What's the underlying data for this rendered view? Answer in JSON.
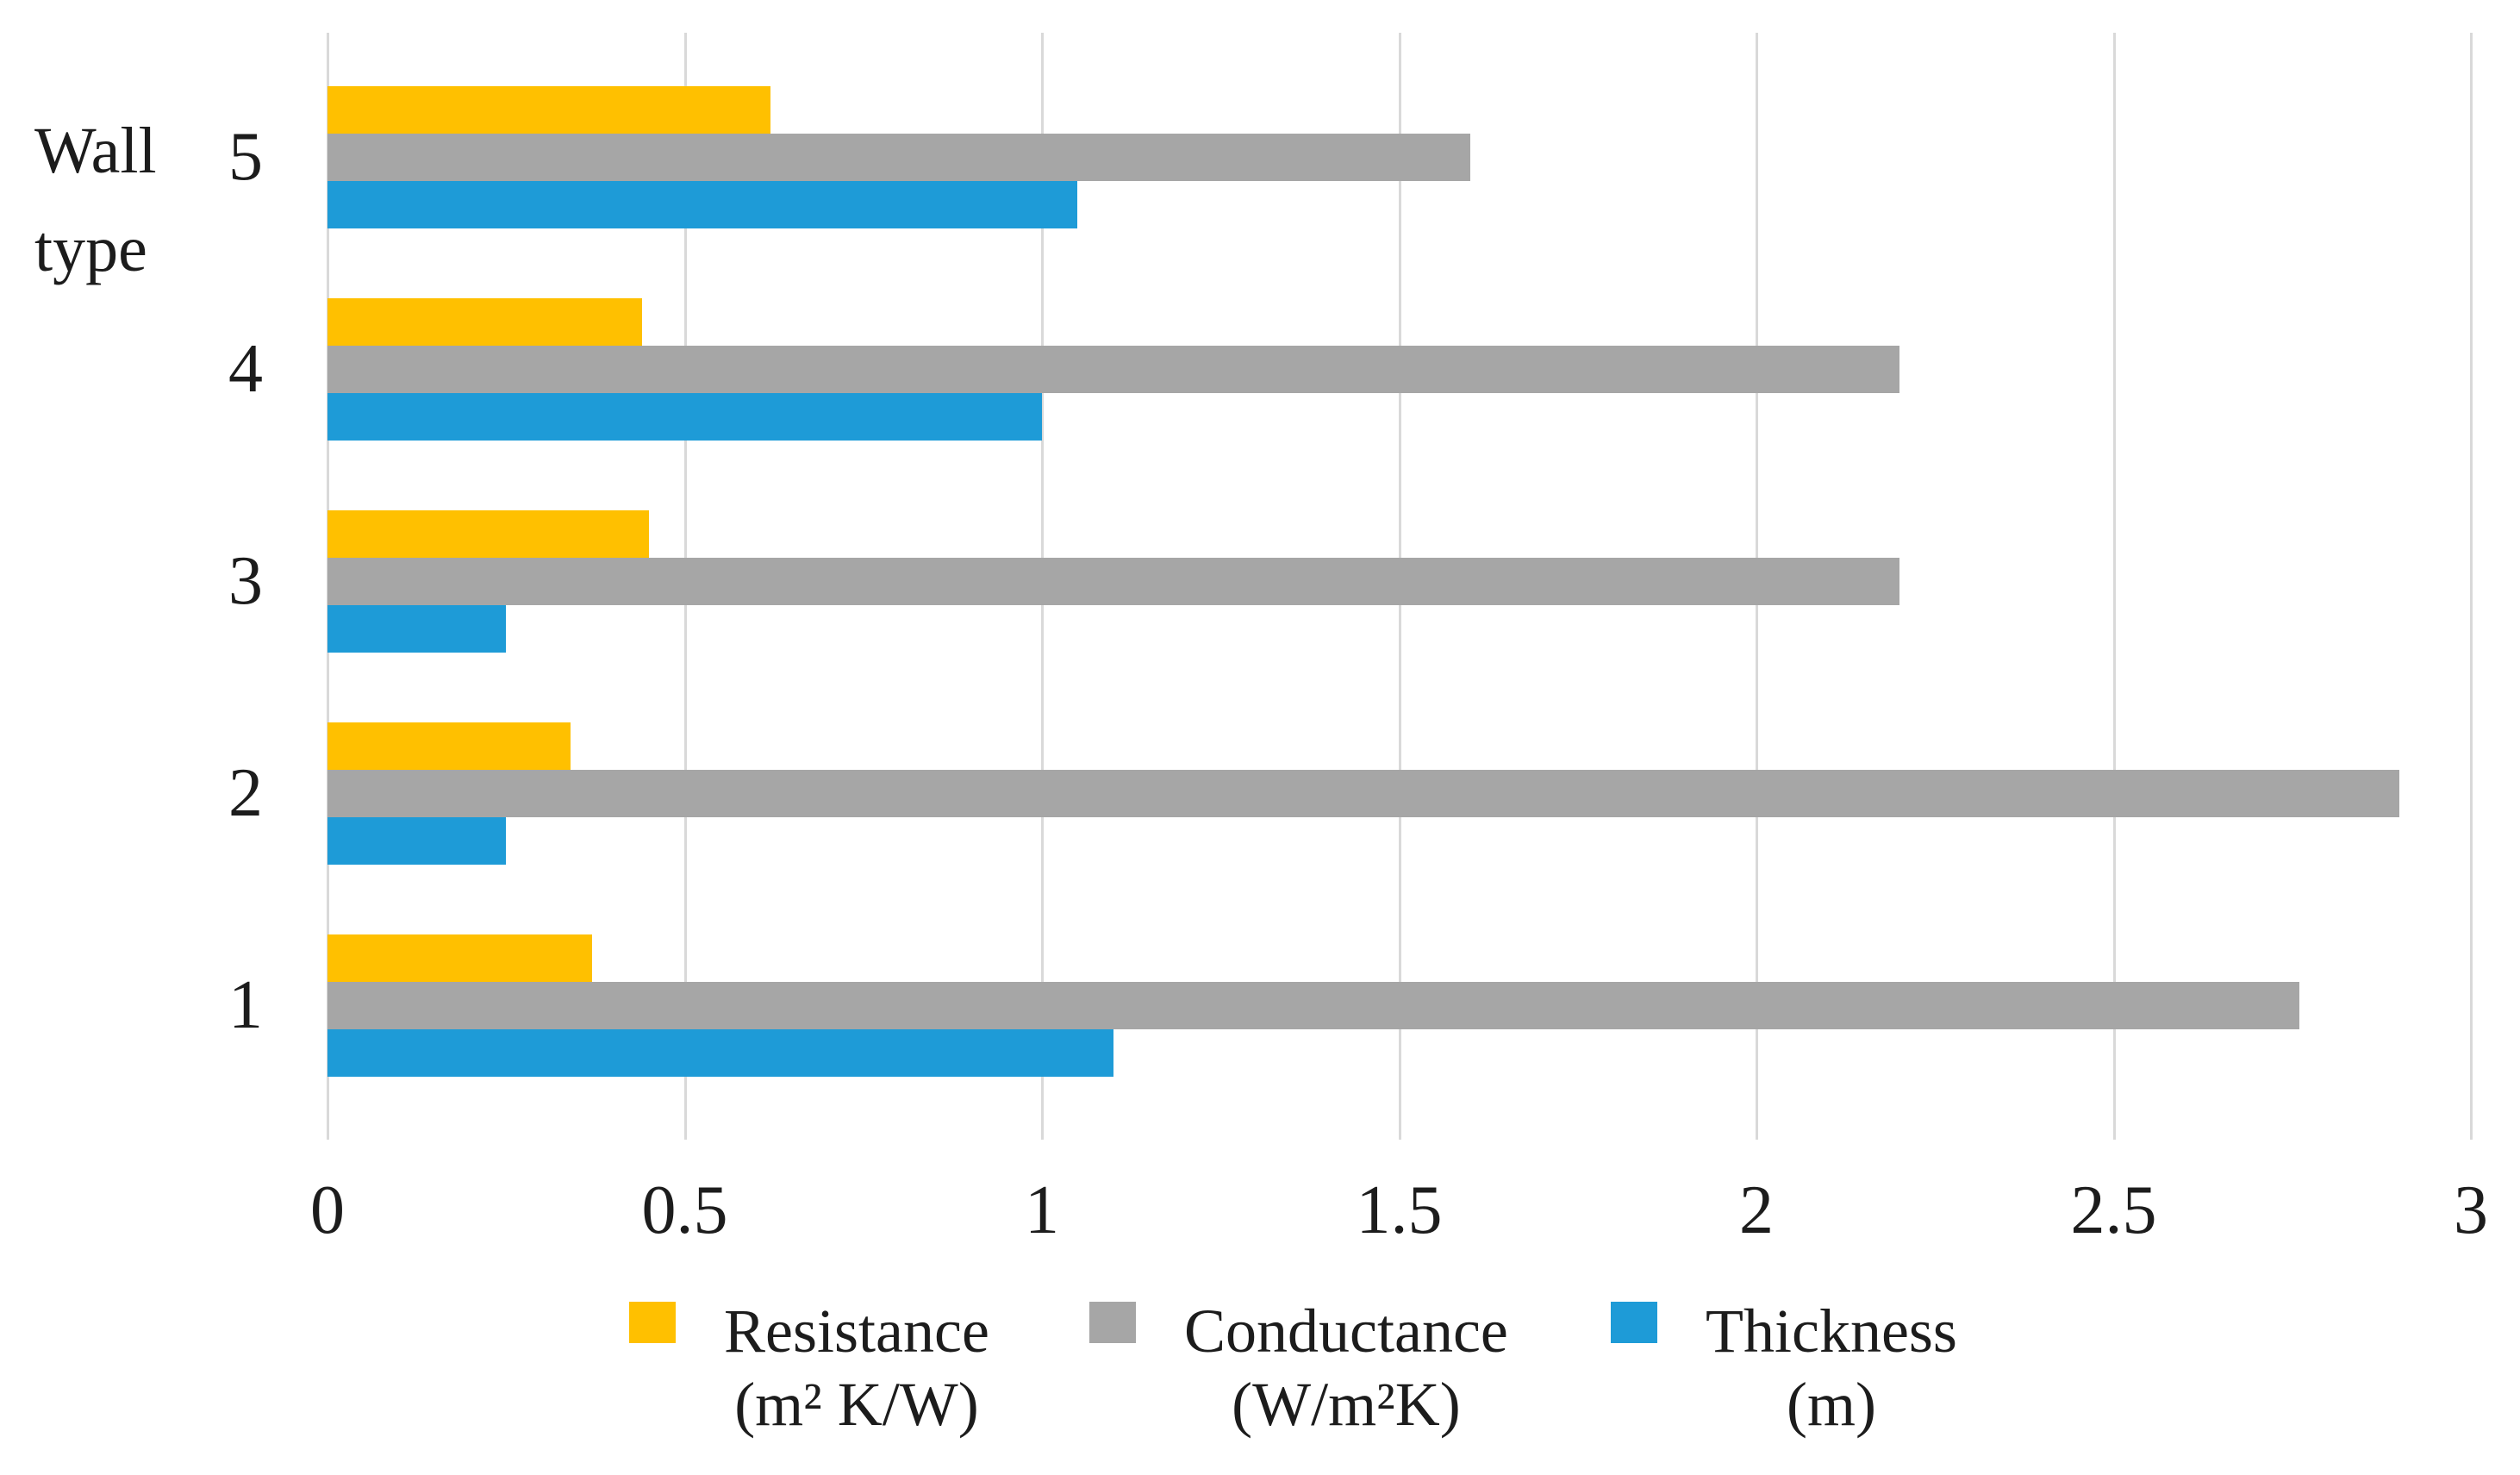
{
  "chart_data": {
    "type": "bar",
    "orientation": "horizontal",
    "axis_label": "Wall type",
    "categories": [
      "5",
      "4",
      "3",
      "2",
      "1"
    ],
    "series": [
      {
        "name": "Resistance",
        "unit": "(m² K/W)",
        "color": "#FFC000",
        "values": [
          0.62,
          0.44,
          0.45,
          0.34,
          0.37
        ]
      },
      {
        "name": "Conductance",
        "unit": "(W/m²K)",
        "color": "#A6A6A6",
        "values": [
          1.6,
          2.2,
          2.2,
          2.9,
          2.76
        ]
      },
      {
        "name": "Thickness",
        "unit": "(m)",
        "color": "#1E9BD7",
        "values": [
          1.05,
          1.0,
          0.25,
          0.25,
          1.1
        ]
      }
    ],
    "xlim": [
      0,
      3
    ],
    "xticks": [
      "0",
      "0.5",
      "1",
      "1.5",
      "2",
      "2.5",
      "3"
    ],
    "grid": true,
    "legend_position": "bottom",
    "colors": {
      "gridline": "#D9D9D9",
      "text": "#1C1C1C",
      "background": "#FFFFFF"
    }
  }
}
